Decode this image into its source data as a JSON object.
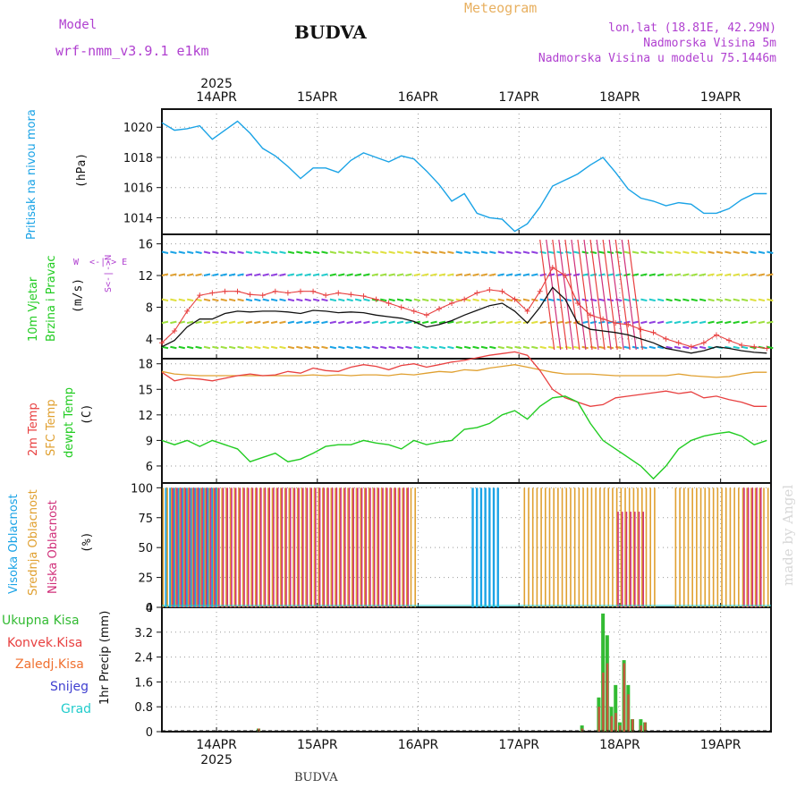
{
  "header": {
    "model_label": "Model",
    "model_name": "wrf-nmm_v3.9.1 e1km",
    "location": "BUDVA",
    "title": "Meteogram",
    "lonlat": "lon,lat (18.81E, 42.29N)",
    "altitude": "Nadmorska Visina 5m",
    "model_altitude": "Nadmorska Visina u modelu 75.1446m",
    "footer_location": "BUDVA",
    "watermark": "made by Angel"
  },
  "colors": {
    "pressure": "#1aa3e6",
    "wind_speed": "#111111",
    "wind_gust": "#e84040",
    "temp_2m": "#e84040",
    "temp_sfc": "#e0a030",
    "dewpoint": "#22cc22",
    "cloud_high": "#1aa3e6",
    "cloud_mid": "#e0a030",
    "cloud_low": "#d0307a",
    "precip_total": "#33bb33",
    "precip_conv": "#e84040",
    "precip_frz": "#f07030",
    "precip_snow": "#4040d0",
    "precip_hail": "#22cccc"
  },
  "chart_data": [
    {
      "type": "line",
      "panel": "pressure",
      "ylabel": "Pritisak na nivou mora",
      "unit": "(hPa)",
      "x_top_labels": [
        "14APR",
        "15APR",
        "16APR",
        "17APR",
        "18APR",
        "19APR"
      ],
      "x_top_year": "2025",
      "yticks": [
        1014,
        1016,
        1018,
        1020
      ],
      "ylim": [
        1012.9,
        1021.2
      ],
      "x_hours": [
        0,
        3,
        6,
        9,
        12,
        15,
        18,
        21,
        24,
        27,
        30,
        33,
        36,
        39,
        42,
        45,
        48,
        51,
        54,
        57,
        60,
        63,
        66,
        69,
        72,
        75,
        78,
        81,
        84,
        87,
        90,
        93,
        96,
        99,
        102,
        105,
        108,
        111,
        114,
        117,
        120,
        123,
        126,
        129,
        132,
        135,
        138,
        141,
        144
      ],
      "series": [
        {
          "values": [
            1020.3,
            1019.8,
            1019.9,
            1020.1,
            1019.2,
            1019.8,
            1020.4,
            1019.6,
            1018.6,
            1018.1,
            1017.4,
            1016.6,
            1017.3,
            1017.3,
            1017.0,
            1017.8,
            1018.3,
            1018.0,
            1017.7,
            1018.1,
            1017.9,
            1017.1,
            1016.2,
            1015.1,
            1015.6,
            1014.3,
            1014.0,
            1013.9,
            1013.1,
            1013.6,
            1014.7,
            1016.1,
            1016.5,
            1016.9,
            1017.5,
            1018.0,
            1017.0,
            1015.9,
            1015.3,
            1015.1,
            1014.8,
            1015.0,
            1014.9,
            1014.3,
            1014.3,
            1014.6,
            1015.2,
            1015.6,
            1015.6
          ]
        }
      ]
    },
    {
      "type": "line",
      "panel": "wind",
      "ylabel": "10m Vjetar Brzina i Pravac",
      "unit": "(m/s)",
      "compass": "N S W E",
      "yticks": [
        4,
        8,
        12,
        16
      ],
      "ylim": [
        1.5,
        17.2
      ],
      "x_hours": [
        0,
        3,
        6,
        9,
        12,
        15,
        18,
        21,
        24,
        27,
        30,
        33,
        36,
        39,
        42,
        45,
        48,
        51,
        54,
        57,
        60,
        63,
        66,
        69,
        72,
        75,
        78,
        81,
        84,
        87,
        90,
        93,
        96,
        99,
        102,
        105,
        108,
        111,
        114,
        117,
        120,
        123,
        126,
        129,
        132,
        135,
        138,
        141,
        144
      ],
      "series": [
        {
          "name": "speed",
          "values": [
            3.0,
            3.8,
            5.5,
            6.5,
            6.5,
            7.2,
            7.5,
            7.4,
            7.5,
            7.5,
            7.4,
            7.2,
            7.6,
            7.5,
            7.3,
            7.4,
            7.3,
            7.0,
            6.8,
            6.6,
            6.2,
            5.5,
            5.8,
            6.3,
            7.0,
            7.6,
            8.2,
            8.5,
            7.5,
            6.0,
            8.0,
            10.5,
            9.0,
            6.0,
            5.2,
            5.0,
            4.8,
            4.5,
            4.0,
            3.5,
            2.8,
            2.5,
            2.2,
            2.5,
            3.0,
            2.8,
            2.5,
            2.3,
            2.2
          ]
        },
        {
          "name": "gust",
          "values": [
            3.5,
            5.0,
            7.5,
            9.5,
            9.8,
            10.0,
            10.0,
            9.6,
            9.5,
            10.0,
            9.8,
            10.0,
            10.0,
            9.5,
            9.8,
            9.6,
            9.4,
            9.0,
            8.5,
            8.0,
            7.5,
            7.0,
            7.8,
            8.5,
            9.0,
            9.8,
            10.2,
            10.0,
            9.0,
            7.5,
            10.0,
            13.0,
            12.0,
            8.5,
            7.0,
            6.5,
            6.0,
            5.8,
            5.2,
            4.8,
            4.0,
            3.5,
            3.0,
            3.5,
            4.5,
            3.8,
            3.2,
            3.0,
            2.8
          ]
        }
      ]
    },
    {
      "type": "line",
      "panel": "temperature",
      "ylabel": "2m Temp SFC Temp dewpt Temp",
      "unit": "(C)",
      "yticks": [
        6,
        9,
        12,
        15,
        18
      ],
      "ylim": [
        4.0,
        18.6
      ],
      "x_hours": [
        0,
        3,
        6,
        9,
        12,
        15,
        18,
        21,
        24,
        27,
        30,
        33,
        36,
        39,
        42,
        45,
        48,
        51,
        54,
        57,
        60,
        63,
        66,
        69,
        72,
        75,
        78,
        81,
        84,
        87,
        90,
        93,
        96,
        99,
        102,
        105,
        108,
        111,
        114,
        117,
        120,
        123,
        126,
        129,
        132,
        135,
        138,
        141,
        144
      ],
      "series": [
        {
          "name": "2m Temp",
          "values": [
            17.0,
            16.0,
            16.3,
            16.2,
            16.0,
            16.3,
            16.6,
            16.8,
            16.6,
            16.7,
            17.1,
            16.9,
            17.5,
            17.2,
            17.1,
            17.6,
            17.9,
            17.7,
            17.3,
            17.8,
            18.0,
            17.6,
            17.9,
            18.2,
            18.4,
            18.7,
            19.0,
            19.2,
            19.4,
            19.0,
            17.2,
            15.0,
            14.0,
            13.5,
            13.0,
            13.2,
            14.0,
            14.2,
            14.4,
            14.6,
            14.8,
            14.5,
            14.7,
            14.0,
            14.2,
            13.8,
            13.5,
            13.0,
            13.0
          ]
        },
        {
          "name": "SFC Temp",
          "values": [
            17.1,
            16.8,
            16.7,
            16.6,
            16.6,
            16.6,
            16.6,
            16.6,
            16.6,
            16.6,
            16.6,
            16.6,
            16.7,
            16.6,
            16.7,
            16.6,
            16.7,
            16.7,
            16.6,
            16.8,
            16.7,
            16.9,
            17.1,
            17.0,
            17.3,
            17.2,
            17.5,
            17.7,
            17.9,
            17.6,
            17.3,
            17.0,
            16.8,
            16.8,
            16.8,
            16.7,
            16.6,
            16.6,
            16.6,
            16.6,
            16.6,
            16.8,
            16.6,
            16.5,
            16.4,
            16.5,
            16.8,
            17.0,
            17.0
          ]
        },
        {
          "name": "dewpt Temp",
          "values": [
            9.0,
            8.5,
            9.0,
            8.3,
            9.0,
            8.5,
            8.0,
            6.5,
            7.0,
            7.5,
            6.5,
            6.8,
            7.5,
            8.3,
            8.5,
            8.5,
            9.0,
            8.7,
            8.5,
            8.0,
            9.0,
            8.5,
            8.8,
            9.0,
            10.3,
            10.5,
            11.0,
            12.0,
            12.5,
            11.5,
            13.0,
            14.0,
            14.2,
            13.5,
            11.0,
            9.0,
            8.0,
            7.0,
            6.0,
            4.5,
            6.0,
            8.0,
            9.0,
            9.5,
            9.8,
            10.0,
            9.5,
            8.5,
            9.0
          ]
        }
      ]
    },
    {
      "type": "bar",
      "panel": "clouds",
      "ylabel": "Visoka Oblacnost Srednja Oblacnost Niska Oblacnost",
      "unit": "(%)",
      "yticks": [
        0,
        25,
        50,
        75,
        100
      ],
      "ylim": [
        0,
        104
      ],
      "series": [
        {
          "name": "Visoka Oblacnost",
          "ranges": [
            [
              1,
              13,
              100
            ],
            [
              74,
              80,
              100
            ]
          ]
        },
        {
          "name": "Srednja Oblacnost",
          "ranges": [
            [
              0,
              60,
              100
            ],
            [
              86,
              117,
              100
            ],
            [
              122,
              144,
              100
            ]
          ]
        },
        {
          "name": "Niska Oblacnost",
          "ranges": [
            [
              2,
              58,
              100
            ],
            [
              108,
              114,
              80
            ],
            [
              138,
              142,
              100
            ]
          ]
        }
      ]
    },
    {
      "type": "bar",
      "panel": "precipitation",
      "ylabel": "1hr Precip",
      "unit": "(mm)",
      "legend": [
        "Ukupna Kisa",
        "Konvek.Kisa",
        "Zaledj.Kisa",
        "Snijeg",
        "Grad"
      ],
      "yticks": [
        0,
        0.8,
        1.6,
        2.4,
        3.2,
        4
      ],
      "ylim": [
        0,
        4.0
      ],
      "x_bottom_labels": [
        "14APR",
        "15APR",
        "16APR",
        "17APR",
        "18APR",
        "19APR"
      ],
      "x_bottom_year": "2025",
      "bars": [
        {
          "h": 23,
          "total": 0.1,
          "conv": 0.1
        },
        {
          "h": 100,
          "total": 0.2,
          "conv": 0.1
        },
        {
          "h": 104,
          "total": 1.1,
          "conv": 0.8
        },
        {
          "h": 105,
          "total": 3.8,
          "conv": 1.9
        },
        {
          "h": 106,
          "total": 3.1,
          "conv": 2.2
        },
        {
          "h": 107,
          "total": 0.8,
          "conv": 0.5
        },
        {
          "h": 108,
          "total": 1.5,
          "conv": 0.6
        },
        {
          "h": 109,
          "total": 0.3,
          "conv": 0.2
        },
        {
          "h": 110,
          "total": 2.3,
          "conv": 2.2
        },
        {
          "h": 111,
          "total": 1.5,
          "conv": 1.2
        },
        {
          "h": 112,
          "total": 0.4,
          "conv": 0.4
        },
        {
          "h": 114,
          "total": 0.4,
          "conv": 0.2
        },
        {
          "h": 115,
          "total": 0.3,
          "conv": 0.3
        }
      ]
    }
  ]
}
